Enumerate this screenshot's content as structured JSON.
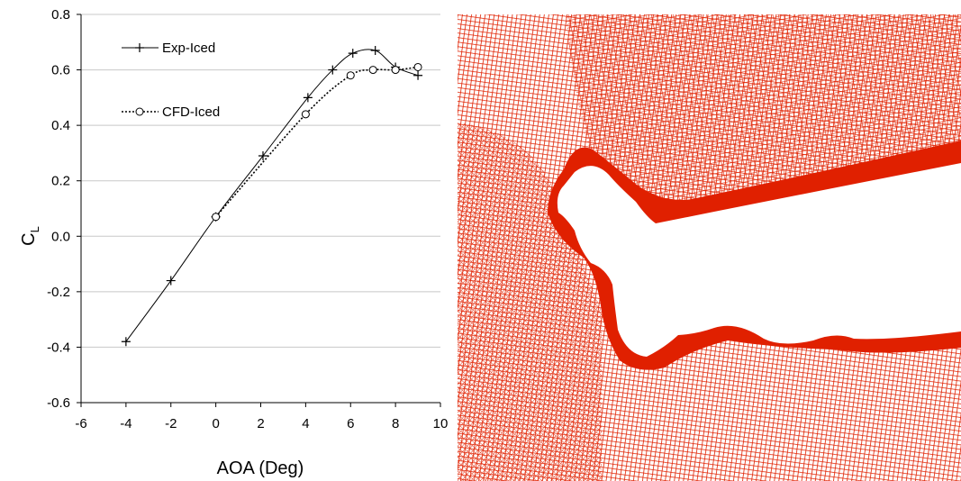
{
  "chart_data": {
    "type": "line",
    "xlabel": "AOA (Deg)",
    "ylabel": "C",
    "ylabel_sub": "L",
    "xlim": [
      -6,
      10
    ],
    "ylim": [
      -0.6,
      0.8
    ],
    "xticks": [
      "-6",
      "-4",
      "-2",
      "0",
      "2",
      "4",
      "6",
      "8",
      "10"
    ],
    "yticks": [
      "0.8",
      "0.6",
      "0.4",
      "0.2",
      "0.0",
      "-0.2",
      "-0.4",
      "-0.6"
    ],
    "grid": "horizontal",
    "legend_position": "top-left",
    "series": [
      {
        "name": "Exp-Iced",
        "marker": "plus",
        "line": "solid",
        "x": [
          -4.0,
          -2.0,
          0.0,
          2.1,
          4.1,
          5.2,
          6.1,
          7.1,
          8.0,
          9.0
        ],
        "y": [
          -0.38,
          -0.16,
          0.07,
          0.29,
          0.5,
          0.6,
          0.66,
          0.67,
          0.61,
          0.58
        ]
      },
      {
        "name": "CFD-Iced",
        "marker": "circle",
        "line": "dotted",
        "x": [
          0.0,
          4.0,
          6.0,
          7.0,
          8.0,
          9.0
        ],
        "y": [
          0.07,
          0.44,
          0.58,
          0.6,
          0.6,
          0.61
        ]
      }
    ]
  },
  "mesh_figure": {
    "mesh_color": "#e02000"
  }
}
